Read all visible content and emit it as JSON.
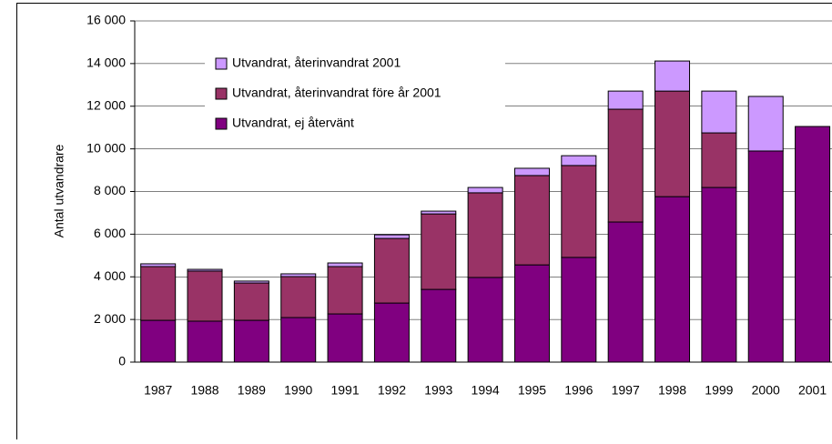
{
  "chart_data": {
    "type": "stacked_bar",
    "y_label": "Antal utvandrare",
    "categories": [
      "1987",
      "1988",
      "1989",
      "1990",
      "1991",
      "1992",
      "1993",
      "1994",
      "1995",
      "1996",
      "1997",
      "1998",
      "1999",
      "2000",
      "2001"
    ],
    "series": [
      {
        "name": "Utvandrat, ej återvänt",
        "color": "#800080",
        "values": [
          1960,
          1920,
          1960,
          2090,
          2260,
          2770,
          3410,
          3970,
          4560,
          4910,
          6570,
          7760,
          8190,
          9900,
          11050
        ]
      },
      {
        "name": "Utvandrat, återinvandrat före år 2001",
        "color": "#993366",
        "values": [
          2520,
          2350,
          1750,
          1920,
          2220,
          3030,
          3540,
          3970,
          4190,
          4310,
          5290,
          4950,
          2560,
          0,
          0
        ]
      },
      {
        "name": "Utvandrat, återinvandrat 2001",
        "color": "#cc99ff",
        "values": [
          130,
          80,
          90,
          130,
          170,
          170,
          130,
          250,
          340,
          460,
          850,
          1410,
          1960,
          2560,
          0
        ]
      }
    ],
    "ylim": [
      0,
      16000
    ],
    "yticks": [
      0,
      {
        "value": 2000,
        "label": "2 000"
      },
      {
        "value": 4000,
        "label": "4 000"
      },
      {
        "value": 6000,
        "label": "6 000"
      },
      {
        "value": 8000,
        "label": "8 000"
      },
      {
        "value": 10000,
        "label": "10 000"
      },
      {
        "value": 12000,
        "label": "12 000"
      },
      {
        "value": 14000,
        "label": "14 000"
      },
      {
        "value": 16000,
        "label": "16 000"
      }
    ],
    "grid": true,
    "legend": "top-left"
  }
}
